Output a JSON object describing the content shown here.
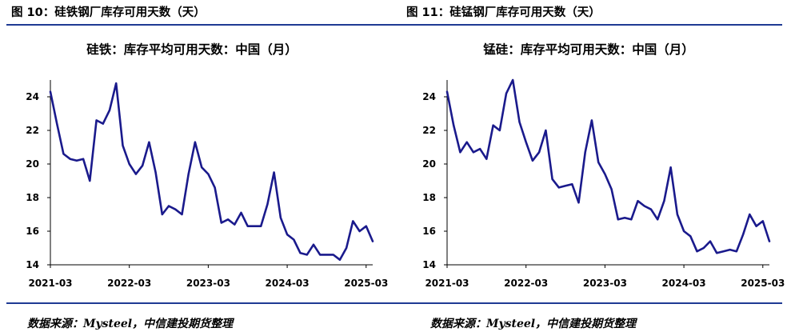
{
  "figures": [
    {
      "figure_title": "图 10：硅铁钢厂库存可用天数（天）",
      "source": "数据来源：Mysteel，中信建投期货整理"
    },
    {
      "figure_title": "图 11：硅锰钢厂库存可用天数（天）",
      "source": "数据来源：Mysteel，中信建投期货整理"
    }
  ],
  "style": {
    "rule_color": "#1f3a93",
    "line_color": "#1a1a8c",
    "axis_color": "#000000"
  },
  "chart_data": [
    {
      "type": "line",
      "title": "硅铁：库存平均可用天数：中国（月）",
      "xlabel": "",
      "ylabel": "",
      "x_tick_labels": [
        "2021-03",
        "2022-03",
        "2023-03",
        "2024-03",
        "2025-03"
      ],
      "y_ticks": [
        14,
        16,
        18,
        20,
        22,
        24
      ],
      "ylim": [
        14,
        25
      ],
      "grid": false,
      "legend": "none",
      "x": [
        "2021-03",
        "2021-04",
        "2021-05",
        "2021-06",
        "2021-07",
        "2021-08",
        "2021-09",
        "2021-10",
        "2021-11",
        "2021-12",
        "2022-01",
        "2022-02",
        "2022-03",
        "2022-04",
        "2022-05",
        "2022-06",
        "2022-07",
        "2022-08",
        "2022-09",
        "2022-10",
        "2022-11",
        "2022-12",
        "2023-01",
        "2023-02",
        "2023-03",
        "2023-04",
        "2023-05",
        "2023-06",
        "2023-07",
        "2023-08",
        "2023-09",
        "2023-10",
        "2023-11",
        "2023-12",
        "2024-01",
        "2024-02",
        "2024-03",
        "2024-04",
        "2024-05",
        "2024-06",
        "2024-07",
        "2024-08",
        "2024-09",
        "2024-10",
        "2024-11",
        "2024-12",
        "2025-01",
        "2025-02",
        "2025-03",
        "2025-04"
      ],
      "values": [
        24.3,
        22.4,
        20.6,
        20.3,
        20.2,
        20.3,
        19.0,
        22.6,
        22.4,
        23.2,
        24.8,
        21.1,
        20.0,
        19.4,
        19.9,
        21.3,
        19.5,
        17.0,
        17.5,
        17.3,
        17.0,
        19.4,
        21.3,
        19.8,
        19.4,
        18.6,
        16.5,
        16.7,
        16.4,
        17.1,
        16.3,
        16.3,
        16.3,
        17.6,
        19.5,
        16.8,
        15.8,
        15.5,
        14.7,
        14.6,
        15.2,
        14.6,
        14.6,
        14.6,
        14.3,
        15.0,
        16.6,
        16.0,
        16.3,
        15.4
      ]
    },
    {
      "type": "line",
      "title": "锰硅：库存平均可用天数：中国（月）",
      "xlabel": "",
      "ylabel": "",
      "x_tick_labels": [
        "2021-03",
        "2022-03",
        "2023-03",
        "2024-03",
        "2025-03"
      ],
      "y_ticks": [
        14,
        16,
        18,
        20,
        22,
        24
      ],
      "ylim": [
        14,
        25
      ],
      "grid": false,
      "legend": "none",
      "x": [
        "2021-03",
        "2021-04",
        "2021-05",
        "2021-06",
        "2021-07",
        "2021-08",
        "2021-09",
        "2021-10",
        "2021-11",
        "2021-12",
        "2022-01",
        "2022-02",
        "2022-03",
        "2022-04",
        "2022-05",
        "2022-06",
        "2022-07",
        "2022-08",
        "2022-09",
        "2022-10",
        "2022-11",
        "2022-12",
        "2023-01",
        "2023-02",
        "2023-03",
        "2023-04",
        "2023-05",
        "2023-06",
        "2023-07",
        "2023-08",
        "2023-09",
        "2023-10",
        "2023-11",
        "2023-12",
        "2024-01",
        "2024-02",
        "2024-03",
        "2024-04",
        "2024-05",
        "2024-06",
        "2024-07",
        "2024-08",
        "2024-09",
        "2024-10",
        "2024-11",
        "2024-12",
        "2025-01",
        "2025-02",
        "2025-03",
        "2025-04"
      ],
      "values": [
        24.3,
        22.3,
        20.7,
        21.3,
        20.7,
        20.9,
        20.3,
        22.3,
        22.0,
        24.2,
        25.0,
        22.5,
        21.3,
        20.2,
        20.7,
        22.0,
        19.1,
        18.6,
        18.7,
        18.8,
        17.7,
        20.7,
        22.6,
        20.1,
        19.4,
        18.5,
        16.7,
        16.8,
        16.7,
        17.8,
        17.5,
        17.3,
        16.7,
        17.8,
        19.8,
        17.0,
        16.0,
        15.7,
        14.8,
        15.0,
        15.4,
        14.7,
        14.8,
        14.9,
        14.8,
        15.8,
        17.0,
        16.3,
        16.6,
        15.4
      ]
    }
  ]
}
